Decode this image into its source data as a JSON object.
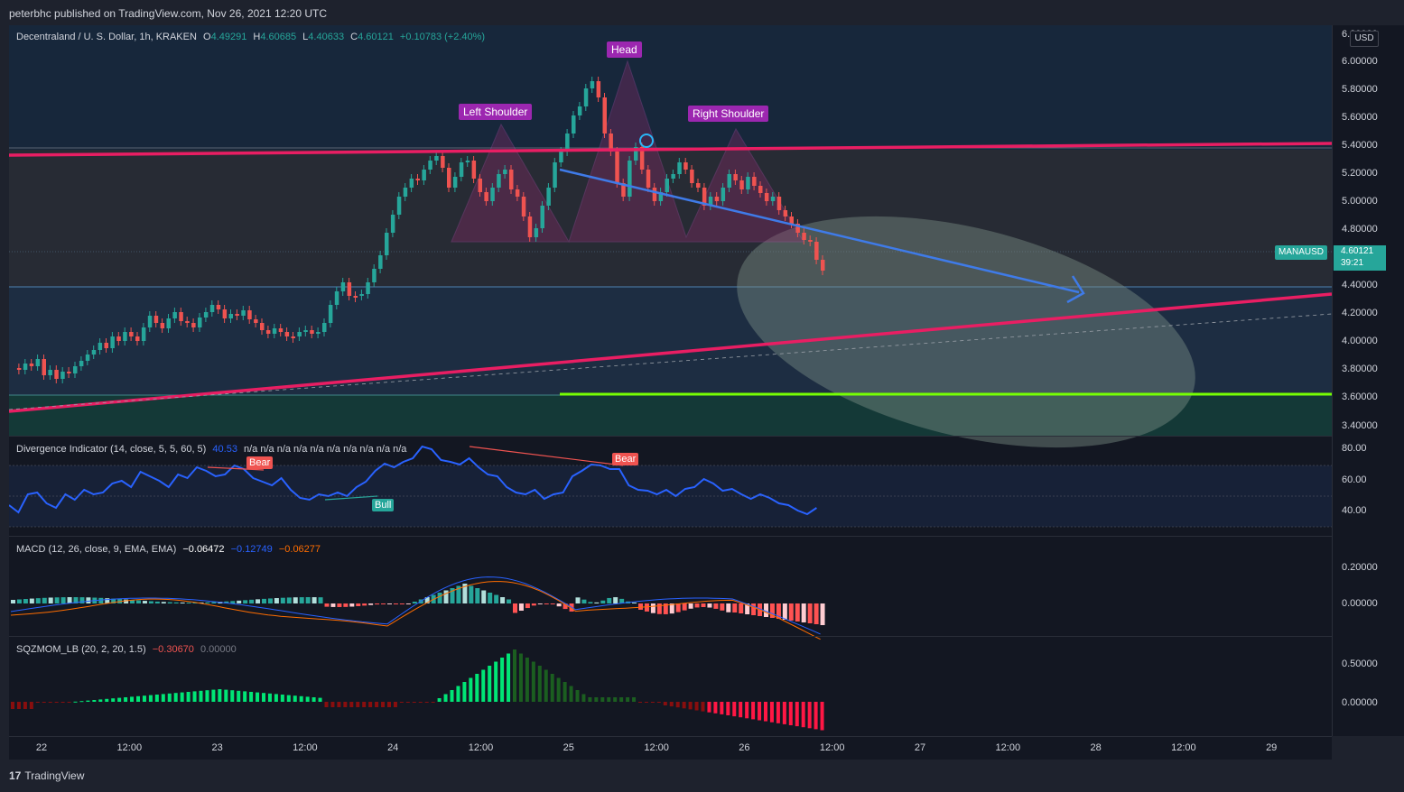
{
  "header": {
    "published": "peterbhc published on TradingView.com, Nov 26, 2021 12:20 UTC"
  },
  "main_pane": {
    "symbol_title": "Decentraland / U. S. Dollar, 1h, KRAKEN",
    "ohlc": {
      "o_label": "O",
      "o": "4.49291",
      "h_label": "H",
      "h": "4.60685",
      "l_label": "L",
      "l": "4.40633",
      "c_label": "C",
      "c": "4.60121",
      "change": "+0.10783 (+2.40%)"
    },
    "pattern_labels": {
      "left_shoulder": "Left Shoulder",
      "head": "Head",
      "right_shoulder": "Right Shoulder"
    },
    "currency": "USD",
    "symbol_tag": "MANAUSD",
    "last_price": "4.60121",
    "countdown": "39:21",
    "price_ticks": [
      "6.20000",
      "6.00000",
      "5.80000",
      "5.60000",
      "5.40000",
      "5.20000",
      "5.00000",
      "4.80000",
      "4.40000",
      "4.20000",
      "4.00000",
      "3.80000",
      "3.60000",
      "3.40000"
    ]
  },
  "divergence_pane": {
    "title": "Divergence Indicator (14, close, 5, 5, 60, 5)",
    "value": "40.53",
    "na_values": "n/a n/a n/a n/a n/a n/a n/a n/a n/a n/a",
    "labels": {
      "bear1": "Bear",
      "bear2": "Bear",
      "bull": "Bull"
    },
    "ticks": [
      "80.00",
      "60.00",
      "40.00"
    ]
  },
  "macd_pane": {
    "title": "MACD (12, 26, close, 9, EMA, EMA)",
    "v1": "−0.06472",
    "v2": "−0.12749",
    "v3": "−0.06277",
    "ticks": [
      "0.20000",
      "0.00000"
    ]
  },
  "sqz_pane": {
    "title": "SQZMOM_LB (20, 2, 20, 1.5)",
    "v1": "−0.30670",
    "v2": "0.00000",
    "ticks": [
      "0.50000",
      "0.00000"
    ]
  },
  "time_axis": [
    "22",
    "12:00",
    "23",
    "12:00",
    "24",
    "12:00",
    "25",
    "12:00",
    "26",
    "12:00",
    "27",
    "12:00",
    "28",
    "12:00",
    "29"
  ],
  "footer": {
    "logo": "17",
    "brand": "TradingView"
  },
  "colors": {
    "up": "#26a69a",
    "down": "#ef5350",
    "trend": "#e91e63",
    "target": "#76ff03",
    "arrow": "#2962ff"
  }
}
